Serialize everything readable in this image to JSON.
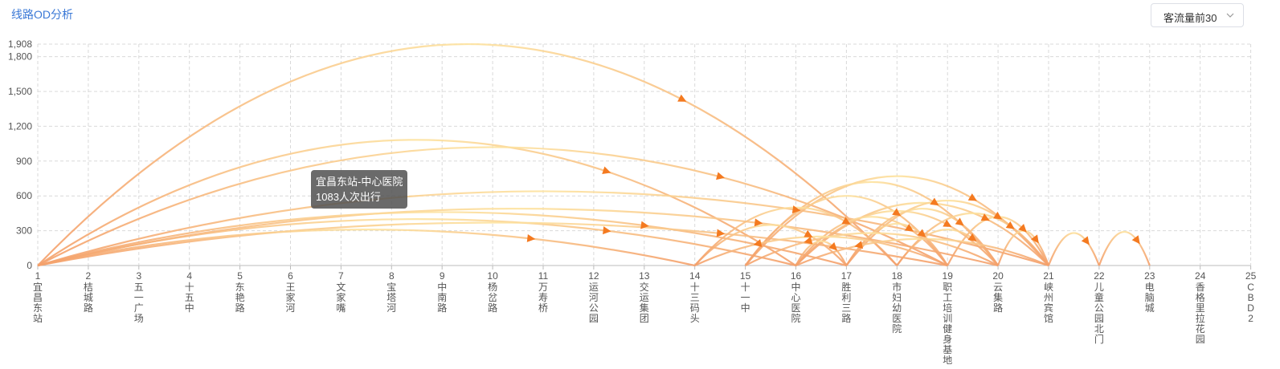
{
  "header": {
    "title": "线路OD分析"
  },
  "filter": {
    "selected": "客流量前30",
    "icon": "chevron-down-icon"
  },
  "tooltip": {
    "title": "宜昌东站-中心医院",
    "value": "1083人次出行"
  },
  "colors": {
    "low": "#fde3a0",
    "high": "#f4a06b",
    "arrow": "#f47a20",
    "grid": "#d9d9d9"
  },
  "chart_data": {
    "type": "arc",
    "ylim": [
      0,
      1908
    ],
    "yticks": [
      0,
      300,
      600,
      900,
      1200,
      1500,
      1800,
      1908
    ],
    "ytick_labels": [
      "0",
      "300",
      "600",
      "900",
      "1,200",
      "1,500",
      "1,800",
      "1,908"
    ],
    "grid": true,
    "stations": [
      {
        "n": "1",
        "name": "宜昌东站"
      },
      {
        "n": "2",
        "name": "桔城路"
      },
      {
        "n": "3",
        "name": "五一广场"
      },
      {
        "n": "4",
        "name": "十五中"
      },
      {
        "n": "5",
        "name": "东艳路"
      },
      {
        "n": "6",
        "name": "王家河"
      },
      {
        "n": "7",
        "name": "文家嘴"
      },
      {
        "n": "8",
        "name": "宝塔河"
      },
      {
        "n": "9",
        "name": "中南路"
      },
      {
        "n": "10",
        "name": "杨岔路"
      },
      {
        "n": "11",
        "name": "万寿桥"
      },
      {
        "n": "12",
        "name": "运河公园"
      },
      {
        "n": "13",
        "name": "交运集团"
      },
      {
        "n": "14",
        "name": "十三码头"
      },
      {
        "n": "15",
        "name": "十一中"
      },
      {
        "n": "16",
        "name": "中心医院"
      },
      {
        "n": "17",
        "name": "胜利三路"
      },
      {
        "n": "18",
        "name": "市妇幼医院"
      },
      {
        "n": "19",
        "name": "职工培训健身基地"
      },
      {
        "n": "20",
        "name": "云集路"
      },
      {
        "n": "21",
        "name": "峡州宾馆"
      },
      {
        "n": "22",
        "name": "儿童公园北门"
      },
      {
        "n": "23",
        "name": "电脑城"
      },
      {
        "n": "24",
        "name": "香格里拉花园"
      },
      {
        "n": "25",
        "name": "CBD2"
      }
    ],
    "flows": [
      {
        "from": 1,
        "to": 18,
        "value": 1908
      },
      {
        "from": 1,
        "to": 16,
        "value": 1083
      },
      {
        "from": 1,
        "to": 19,
        "value": 1020
      },
      {
        "from": 1,
        "to": 21,
        "value": 640
      },
      {
        "from": 1,
        "to": 20,
        "value": 490
      },
      {
        "from": 1,
        "to": 17,
        "value": 460
      },
      {
        "from": 1,
        "to": 16,
        "value": 400
      },
      {
        "from": 1,
        "to": 19,
        "value": 370
      },
      {
        "from": 1,
        "to": 14,
        "value": 310
      },
      {
        "from": 15,
        "to": 21,
        "value": 770
      },
      {
        "from": 15,
        "to": 20,
        "value": 720
      },
      {
        "from": 15,
        "to": 19,
        "value": 600
      },
      {
        "from": 14,
        "to": 18,
        "value": 500
      },
      {
        "from": 14,
        "to": 17,
        "value": 350
      },
      {
        "from": 16,
        "to": 21,
        "value": 540
      },
      {
        "from": 16,
        "to": 20,
        "value": 470
      },
      {
        "from": 16,
        "to": 19,
        "value": 420
      },
      {
        "from": 16,
        "to": 17,
        "value": 210
      },
      {
        "from": 17,
        "to": 21,
        "value": 560
      },
      {
        "from": 17,
        "to": 20,
        "value": 490
      },
      {
        "from": 17,
        "to": 19,
        "value": 360
      },
      {
        "from": 18,
        "to": 21,
        "value": 450
      },
      {
        "from": 18,
        "to": 20,
        "value": 310
      },
      {
        "from": 19,
        "to": 21,
        "value": 420
      },
      {
        "from": 20,
        "to": 21,
        "value": 300
      },
      {
        "from": 21,
        "to": 16,
        "value": 230
      },
      {
        "from": 20,
        "to": 15,
        "value": 280
      },
      {
        "from": 19,
        "to": 14,
        "value": 250
      },
      {
        "from": 21,
        "to": 22,
        "value": 280
      },
      {
        "from": 22,
        "to": 23,
        "value": 290
      }
    ]
  }
}
